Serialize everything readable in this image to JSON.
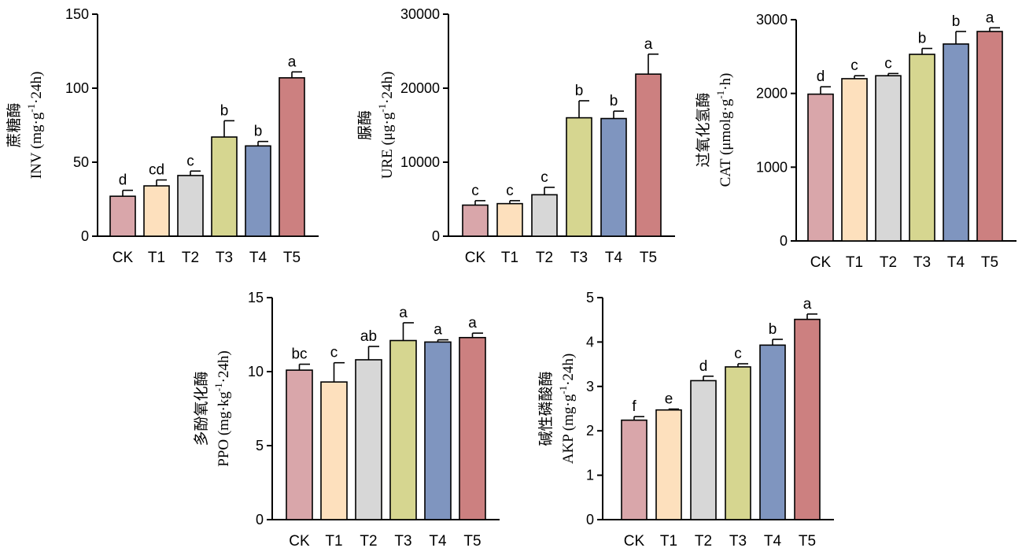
{
  "colors": {
    "CK": "#d9a6aa",
    "T1": "#fde0bd",
    "T2": "#d7d7d7",
    "T3": "#d6d690",
    "T4": "#7f95bf",
    "T5": "#cc8080",
    "outline": "#000000"
  },
  "chart_data": [
    {
      "type": "bar",
      "ylabel_cn": "蔗糖酶",
      "ylabel_text": "INV (mg·g",
      "ylabel_sup": "-1",
      "ylabel_tail": "·24h)",
      "categories": [
        "CK",
        "T1",
        "T2",
        "T3",
        "T4",
        "T5"
      ],
      "values": [
        27,
        34,
        41,
        67,
        61,
        107
      ],
      "errors": [
        4,
        4,
        3,
        11,
        3,
        4
      ],
      "significance": [
        "d",
        "cd",
        "c",
        "b",
        "b",
        "a"
      ],
      "ylim": [
        0,
        150
      ],
      "yticks": [
        0,
        50,
        100,
        150
      ],
      "ytick_labels": [
        "0",
        "50",
        "100",
        "150"
      ],
      "grid": false
    },
    {
      "type": "bar",
      "ylabel_cn": "脲酶",
      "ylabel_text": "URE (μg·g",
      "ylabel_sup": "-1",
      "ylabel_tail": "·24h)",
      "categories": [
        "CK",
        "T1",
        "T2",
        "T3",
        "T4",
        "T5"
      ],
      "values": [
        4200,
        4400,
        5600,
        16000,
        15900,
        21900
      ],
      "errors": [
        600,
        400,
        1000,
        2300,
        1000,
        2700
      ],
      "significance": [
        "c",
        "c",
        "c",
        "b",
        "b",
        "a"
      ],
      "ylim": [
        0,
        30000
      ],
      "yticks": [
        0,
        10000,
        20000,
        30000
      ],
      "ytick_labels": [
        "0",
        "10000",
        "20000",
        "30000"
      ],
      "grid": false
    },
    {
      "type": "bar",
      "ylabel_cn": "过氧化氢酶",
      "ylabel_text": "CAT (μmolg·g",
      "ylabel_sup": "-1",
      "ylabel_tail": "·h)",
      "categories": [
        "CK",
        "T1",
        "T2",
        "T3",
        "T4",
        "T5"
      ],
      "values": [
        1990,
        2200,
        2240,
        2530,
        2670,
        2840
      ],
      "errors": [
        100,
        40,
        30,
        80,
        170,
        50
      ],
      "significance": [
        "d",
        "c",
        "c",
        "b",
        "b",
        "a"
      ],
      "ylim": [
        0,
        3000
      ],
      "yticks": [
        0,
        1000,
        2000,
        3000
      ],
      "ytick_labels": [
        "0",
        "1000",
        "2000",
        "3000"
      ],
      "grid": false
    },
    {
      "type": "bar",
      "ylabel_cn": "多酚氧化酶",
      "ylabel_text": "PPO (mg·kg",
      "ylabel_sup": "-1",
      "ylabel_tail": "·24h)",
      "categories": [
        "CK",
        "T1",
        "T2",
        "T3",
        "T4",
        "T5"
      ],
      "values": [
        10.1,
        9.3,
        10.8,
        12.1,
        12.0,
        12.3
      ],
      "errors": [
        0.4,
        1.3,
        0.9,
        1.2,
        0.15,
        0.3
      ],
      "significance": [
        "bc",
        "c",
        "ab",
        "a",
        "a",
        "a"
      ],
      "ylim": [
        0,
        15
      ],
      "yticks": [
        0,
        5,
        10,
        15
      ],
      "ytick_labels": [
        "0",
        "5",
        "10",
        "15"
      ],
      "grid": false
    },
    {
      "type": "bar",
      "ylabel_cn": "碱性磷酸酶",
      "ylabel_text": "AKP (mg·g",
      "ylabel_sup": "-1",
      "ylabel_tail": "·24h)",
      "categories": [
        "CK",
        "T1",
        "T2",
        "T3",
        "T4",
        "T5"
      ],
      "values": [
        2.24,
        2.47,
        3.13,
        3.44,
        3.93,
        4.51
      ],
      "errors": [
        0.08,
        0.02,
        0.1,
        0.07,
        0.13,
        0.12
      ],
      "significance": [
        "f",
        "e",
        "d",
        "c",
        "b",
        "a"
      ],
      "ylim": [
        0,
        5
      ],
      "yticks": [
        0,
        1,
        2,
        3,
        4,
        5
      ],
      "ytick_labels": [
        "0",
        "1",
        "2",
        "3",
        "4",
        "5"
      ],
      "grid": false
    }
  ]
}
